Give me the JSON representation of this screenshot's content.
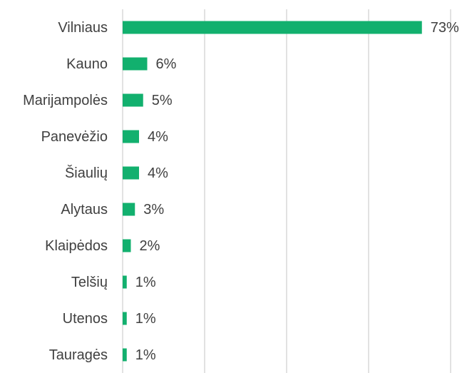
{
  "chart_data": {
    "type": "barh",
    "categories": [
      "Vilniaus",
      "Kauno",
      "Marijampolės",
      "Panevėžio",
      "Šiaulių",
      "Alytaus",
      "Klaipėdos",
      "Telšių",
      "Utenos",
      "Tauragės"
    ],
    "values": [
      73,
      6,
      5,
      4,
      4,
      3,
      2,
      1,
      1,
      1
    ],
    "value_labels": [
      "73%",
      "6%",
      "5%",
      "4%",
      "4%",
      "3%",
      "2%",
      "1%",
      "1%",
      "1%"
    ],
    "color": "#12b06e",
    "xlim": [
      0,
      80
    ],
    "xticks": [
      0,
      20,
      40,
      60,
      80
    ],
    "grid": true
  }
}
